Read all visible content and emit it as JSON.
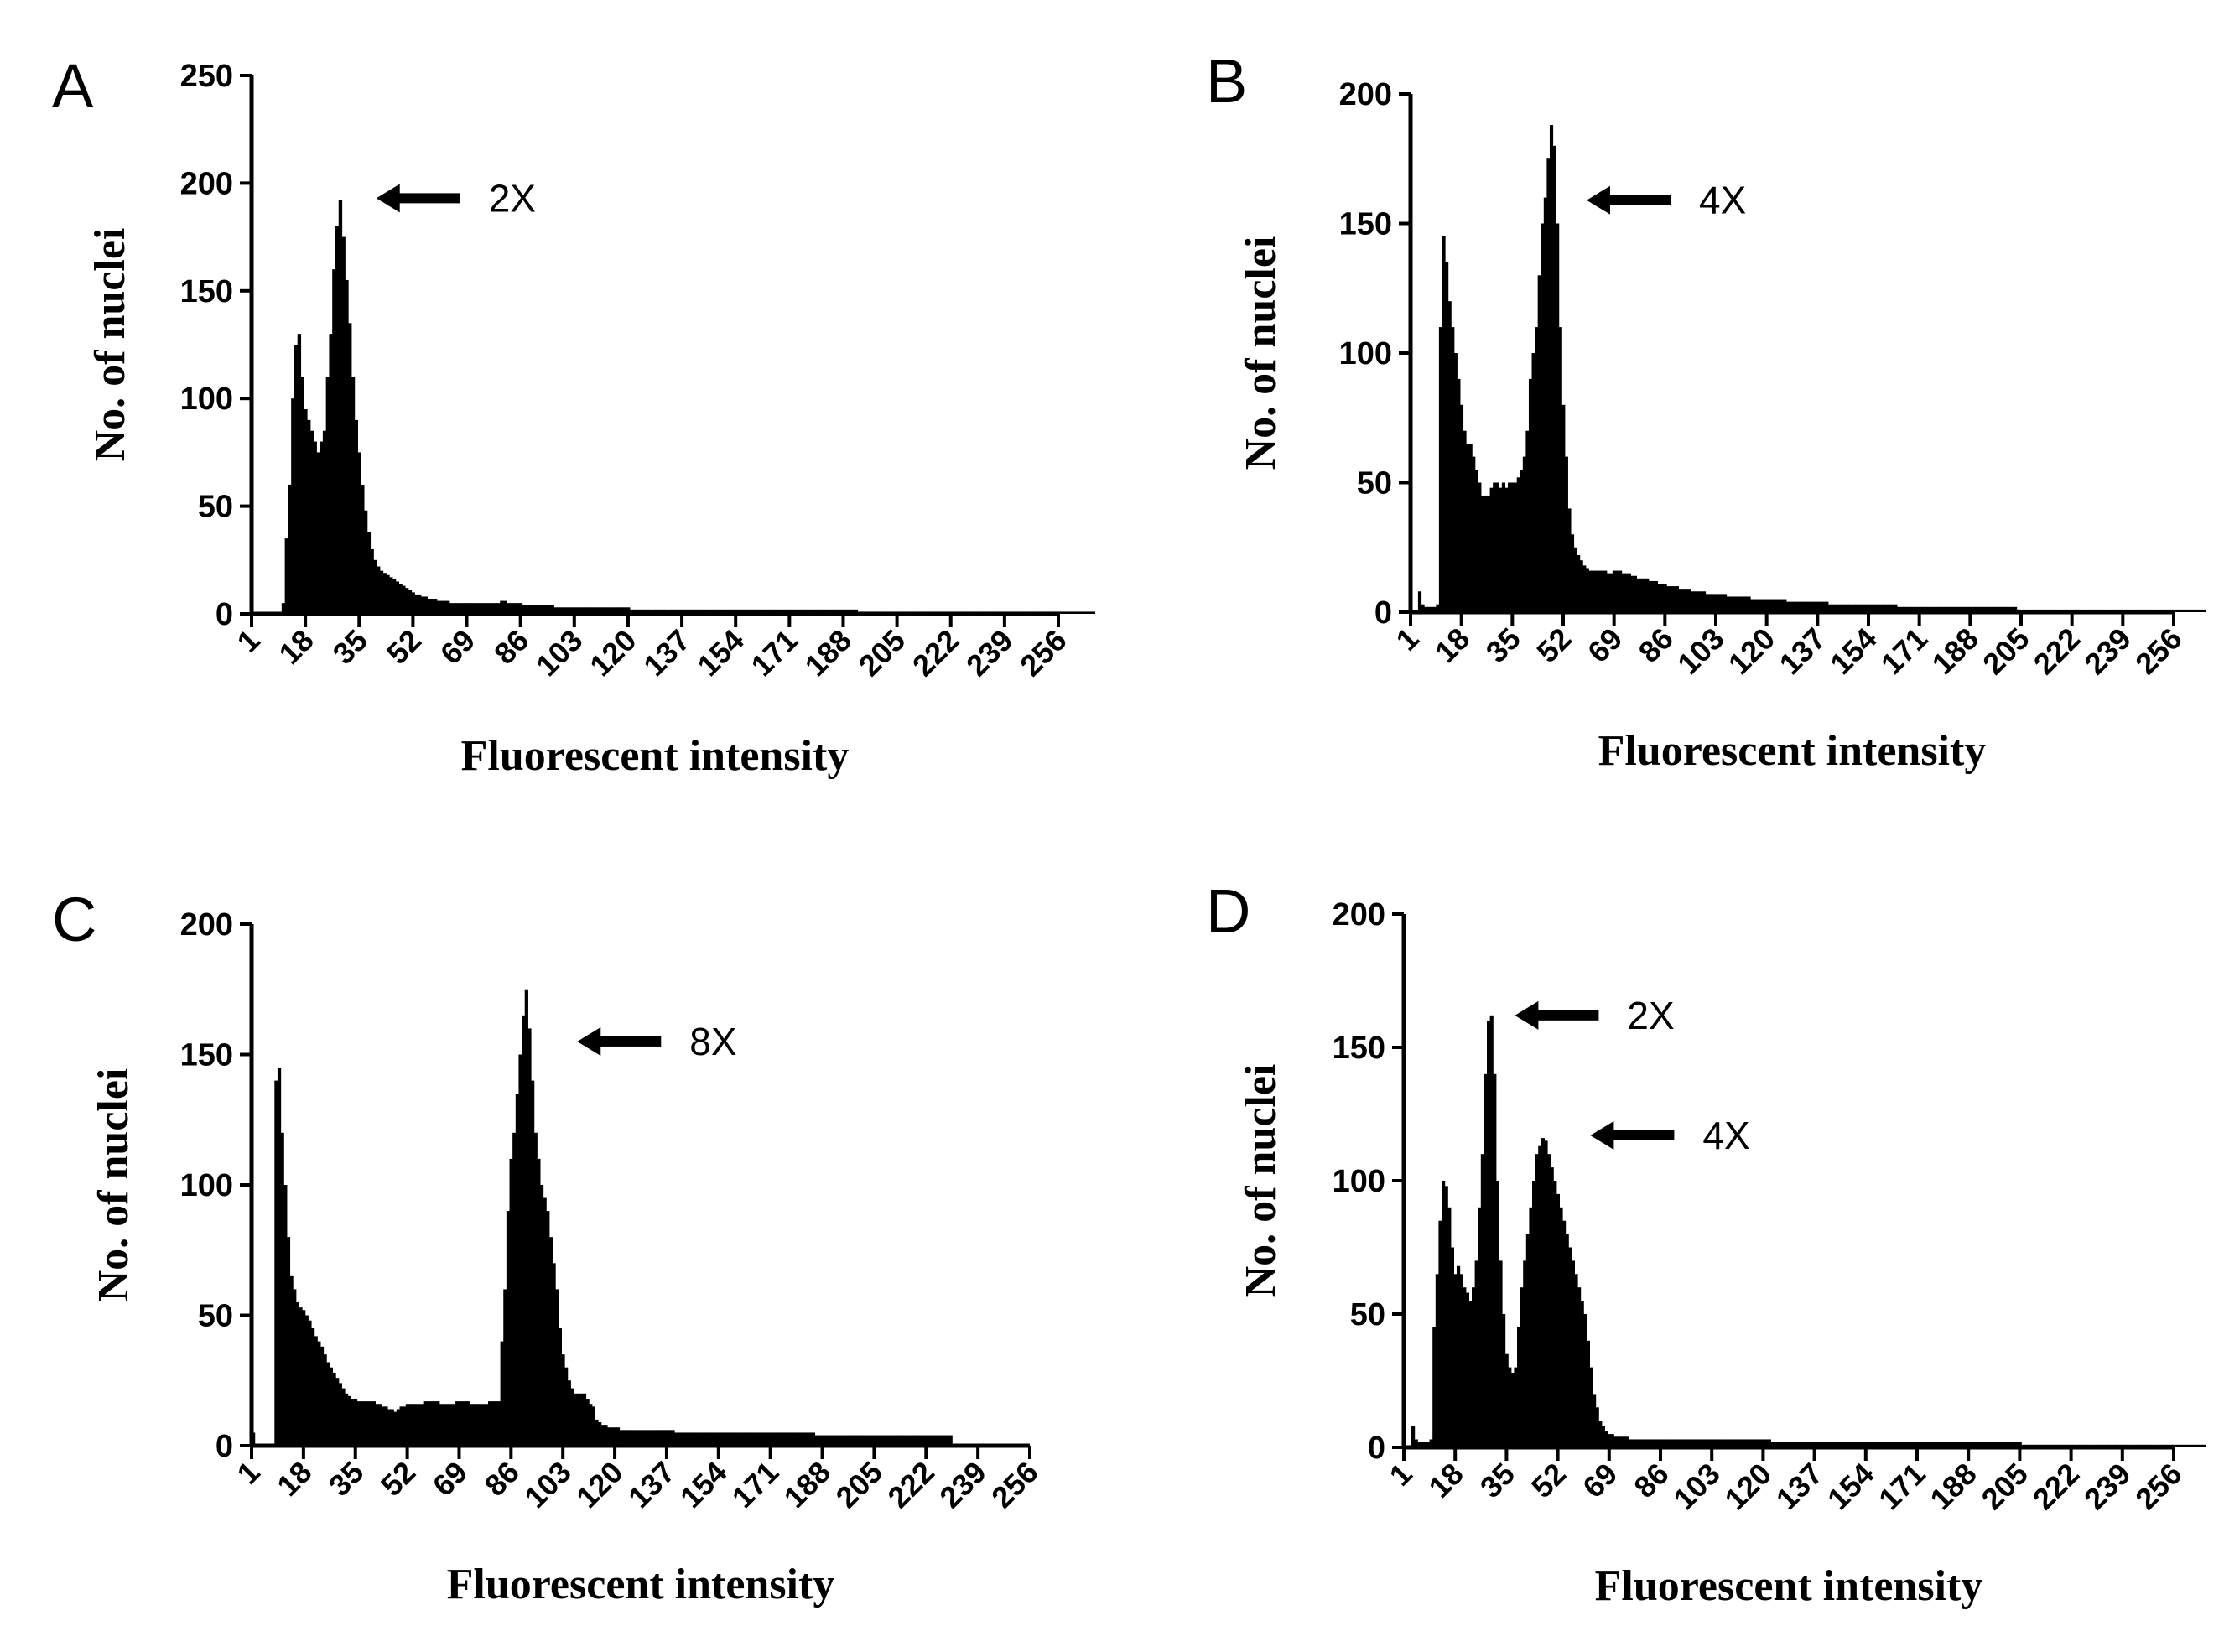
{
  "chart_data": [
    {
      "panel": "A",
      "type": "bar",
      "title": "",
      "xlabel": "Fluorescent intensity",
      "ylabel": "No. of nuclei",
      "xlim": [
        1,
        256
      ],
      "ylim": [
        0,
        250
      ],
      "x_ticks": [
        "1",
        "18",
        "35",
        "52",
        "69",
        "86",
        "103",
        "120",
        "137",
        "154",
        "171",
        "188",
        "205",
        "222",
        "239",
        "256"
      ],
      "y_ticks": [
        "0",
        "50",
        "100",
        "150",
        "200",
        "250"
      ],
      "annotations": [
        {
          "text": "2X",
          "x": 33,
          "y": 193
        }
      ],
      "series": [
        {
          "name": "nuclei",
          "x_start": 1,
          "values": [
            0,
            0,
            0,
            0,
            0,
            0,
            0,
            0,
            0,
            0,
            5,
            35,
            60,
            100,
            125,
            130,
            110,
            95,
            90,
            85,
            80,
            75,
            80,
            85,
            110,
            130,
            160,
            180,
            192,
            175,
            155,
            135,
            110,
            90,
            75,
            60,
            48,
            38,
            30,
            25,
            22,
            20,
            19,
            18,
            17,
            16,
            15,
            14,
            13,
            12,
            11,
            10,
            9,
            9,
            8,
            8,
            7,
            7,
            7,
            6,
            6,
            6,
            6,
            5,
            5,
            5,
            5,
            5,
            5,
            5,
            5,
            5,
            5,
            5,
            5,
            5,
            5,
            5,
            5,
            6,
            6,
            5,
            5,
            5,
            5,
            5,
            4,
            4,
            4,
            4,
            4,
            4,
            4,
            4,
            4,
            4,
            3,
            3,
            3,
            3,
            3,
            3,
            3,
            3,
            3,
            3,
            3,
            3,
            3,
            3,
            3,
            3,
            3,
            3,
            3,
            3,
            3,
            3,
            3,
            3,
            2,
            2,
            2,
            2,
            2,
            2,
            2,
            2,
            2,
            2,
            2,
            2,
            2,
            2,
            2,
            2,
            2,
            2,
            2,
            2,
            2,
            2,
            2,
            2,
            2,
            2,
            2,
            2,
            2,
            2,
            2,
            2,
            2,
            2,
            2,
            2,
            2,
            2,
            2,
            2,
            2,
            2,
            2,
            2,
            2,
            2,
            2,
            2,
            2,
            2,
            2,
            2,
            2,
            2,
            2,
            2,
            2,
            2,
            2,
            2,
            2,
            2,
            2,
            2,
            2,
            2,
            2,
            2,
            2,
            2,
            2,
            2,
            1,
            1,
            1,
            1,
            1,
            1,
            1,
            1,
            1,
            1,
            1,
            1,
            1,
            1,
            1,
            1,
            1,
            1,
            1,
            1,
            1,
            1,
            1,
            1,
            1,
            1,
            1,
            1,
            1,
            1,
            1,
            1,
            1,
            1,
            1,
            1,
            1,
            1,
            1,
            1,
            1,
            1,
            1,
            1,
            1,
            1,
            1,
            1,
            1,
            1,
            1,
            1,
            1,
            1,
            1,
            1,
            1,
            1,
            1,
            1,
            1,
            1,
            1,
            1,
            1,
            1,
            1,
            1,
            1,
            1,
            1,
            1,
            1,
            1,
            1,
            0
          ]
        }
      ]
    },
    {
      "panel": "B",
      "type": "bar",
      "title": "",
      "xlabel": "Fluorescent intensity",
      "ylabel": "No. of nuclei",
      "xlim": [
        1,
        256
      ],
      "ylim": [
        0,
        200
      ],
      "x_ticks": [
        "1",
        "18",
        "35",
        "52",
        "69",
        "86",
        "103",
        "120",
        "137",
        "154",
        "171",
        "188",
        "205",
        "222",
        "239",
        "256"
      ],
      "y_ticks": [
        "0",
        "50",
        "100",
        "150",
        "200"
      ],
      "annotations": [
        {
          "text": "4X",
          "x": 52,
          "y": 159
        }
      ],
      "series": [
        {
          "name": "nuclei",
          "x_start": 1,
          "values": [
            0,
            0,
            0,
            8,
            3,
            2,
            2,
            2,
            2,
            3,
            110,
            145,
            135,
            120,
            110,
            100,
            90,
            80,
            70,
            65,
            65,
            60,
            55,
            50,
            45,
            45,
            45,
            48,
            50,
            50,
            48,
            50,
            48,
            50,
            50,
            50,
            52,
            55,
            60,
            70,
            90,
            100,
            110,
            130,
            150,
            160,
            175,
            188,
            180,
            150,
            110,
            80,
            60,
            40,
            30,
            25,
            22,
            20,
            18,
            17,
            16,
            16,
            16,
            16,
            16,
            16,
            15,
            15,
            16,
            16,
            16,
            15,
            15,
            15,
            14,
            14,
            13,
            13,
            13,
            13,
            12,
            12,
            12,
            11,
            11,
            11,
            10,
            10,
            10,
            10,
            9,
            9,
            9,
            9,
            8,
            8,
            8,
            8,
            8,
            7,
            7,
            7,
            7,
            7,
            7,
            7,
            6,
            6,
            6,
            6,
            6,
            6,
            6,
            6,
            5,
            5,
            5,
            5,
            5,
            5,
            5,
            5,
            5,
            5,
            5,
            5,
            4,
            4,
            4,
            4,
            4,
            4,
            4,
            4,
            4,
            4,
            4,
            4,
            4,
            4,
            3,
            3,
            3,
            3,
            3,
            3,
            3,
            3,
            3,
            3,
            3,
            3,
            3,
            3,
            3,
            3,
            3,
            3,
            3,
            3,
            3,
            3,
            3,
            2,
            2,
            2,
            2,
            2,
            2,
            2,
            2,
            2,
            2,
            2,
            2,
            2,
            2,
            2,
            2,
            2,
            2,
            2,
            2,
            2,
            2,
            2,
            2,
            2,
            2,
            2,
            2,
            2,
            2,
            2,
            2,
            2,
            2,
            2,
            2,
            2,
            2,
            2,
            2,
            1,
            1,
            1,
            1,
            1,
            1,
            1,
            1,
            1,
            1,
            1,
            1,
            1,
            1,
            1,
            1,
            1,
            1,
            1,
            1,
            1,
            1,
            1,
            1,
            1,
            1,
            1,
            1,
            1,
            1,
            1,
            1,
            1,
            1,
            1,
            1,
            1,
            1,
            1,
            1,
            1,
            1,
            1,
            1,
            1,
            1,
            1,
            1,
            1,
            1,
            1,
            1,
            1,
            1,
            1,
            1,
            1,
            1,
            1,
            1,
            1,
            1,
            1,
            0,
            0,
            0,
            0
          ]
        }
      ]
    },
    {
      "panel": "C",
      "type": "bar",
      "title": "",
      "xlabel": "Fluorescent intensity",
      "ylabel": "No. of nuclei",
      "xlim": [
        1,
        256
      ],
      "ylim": [
        0,
        200
      ],
      "x_ticks": [
        "1",
        "18",
        "35",
        "52",
        "69",
        "86",
        "103",
        "120",
        "137",
        "154",
        "171",
        "188",
        "205",
        "222",
        "239",
        "256"
      ],
      "y_ticks": [
        "0",
        "50",
        "100",
        "150",
        "200"
      ],
      "annotations": [
        {
          "text": "8X",
          "x": 100,
          "y": 155
        }
      ],
      "series": [
        {
          "name": "nuclei",
          "x_start": 1,
          "values": [
            5,
            0,
            0,
            0,
            0,
            0,
            0,
            0,
            140,
            145,
            120,
            100,
            80,
            65,
            60,
            55,
            53,
            52,
            50,
            48,
            45,
            42,
            40,
            38,
            35,
            32,
            30,
            28,
            26,
            24,
            22,
            20,
            19,
            18,
            18,
            17,
            17,
            17,
            17,
            17,
            17,
            16,
            16,
            15,
            15,
            14,
            14,
            13,
            14,
            15,
            15,
            16,
            16,
            16,
            16,
            16,
            16,
            17,
            17,
            17,
            17,
            17,
            16,
            16,
            16,
            16,
            16,
            17,
            17,
            17,
            17,
            17,
            16,
            16,
            16,
            16,
            16,
            16,
            17,
            17,
            17,
            17,
            40,
            60,
            90,
            110,
            120,
            135,
            150,
            165,
            175,
            160,
            140,
            120,
            110,
            100,
            95,
            90,
            80,
            70,
            60,
            45,
            35,
            30,
            25,
            22,
            20,
            20,
            20,
            20,
            18,
            16,
            15,
            10,
            9,
            8,
            8,
            7,
            7,
            7,
            7,
            6,
            6,
            6,
            6,
            6,
            6,
            6,
            6,
            6,
            6,
            6,
            6,
            6,
            6,
            6,
            6,
            6,
            6,
            5,
            5,
            5,
            5,
            5,
            5,
            5,
            5,
            5,
            5,
            5,
            5,
            5,
            5,
            5,
            5,
            5,
            5,
            5,
            5,
            5,
            5,
            5,
            5,
            5,
            5,
            5,
            5,
            5,
            5,
            5,
            5,
            5,
            5,
            5,
            5,
            5,
            5,
            5,
            5,
            5,
            5,
            5,
            5,
            5,
            5,
            4,
            4,
            4,
            4,
            4,
            4,
            4,
            4,
            4,
            4,
            4,
            4,
            4,
            4,
            4,
            4,
            4,
            4,
            4,
            4,
            4,
            4,
            4,
            4,
            4,
            4,
            4,
            4,
            4,
            4,
            4,
            4,
            4,
            4,
            4,
            4,
            4,
            4,
            4,
            4,
            4,
            4,
            4,
            4,
            4,
            0,
            0,
            0,
            0,
            0,
            0,
            0,
            0,
            0,
            0,
            0,
            0,
            0,
            0,
            0,
            0
          ]
        }
      ]
    },
    {
      "panel": "D",
      "type": "bar",
      "title": "",
      "xlabel": "Fluorescent intensity",
      "ylabel": "No. of nuclei",
      "xlim": [
        1,
        256
      ],
      "ylim": [
        0,
        200
      ],
      "x_ticks": [
        "1",
        "18",
        "35",
        "52",
        "69",
        "86",
        "103",
        "120",
        "137",
        "154",
        "171",
        "188",
        "205",
        "222",
        "239",
        "256"
      ],
      "y_ticks": [
        "0",
        "50",
        "100",
        "150",
        "200"
      ],
      "annotations": [
        {
          "text": "2X",
          "x": 30,
          "y": 162
        },
        {
          "text": "4X",
          "x": 55,
          "y": 117
        }
      ],
      "series": [
        {
          "name": "nuclei",
          "x_start": 1,
          "values": [
            0,
            0,
            0,
            8,
            3,
            2,
            2,
            2,
            2,
            3,
            45,
            65,
            85,
            100,
            98,
            90,
            75,
            65,
            68,
            65,
            60,
            58,
            55,
            60,
            70,
            90,
            110,
            140,
            160,
            162,
            140,
            100,
            70,
            50,
            35,
            30,
            28,
            30,
            45,
            60,
            70,
            80,
            90,
            100,
            110,
            113,
            116,
            115,
            110,
            105,
            100,
            95,
            90,
            85,
            80,
            75,
            70,
            65,
            60,
            55,
            50,
            40,
            30,
            20,
            15,
            10,
            8,
            6,
            5,
            5,
            4,
            4,
            4,
            4,
            4,
            3,
            3,
            3,
            3,
            3,
            3,
            3,
            3,
            3,
            3,
            3,
            3,
            3,
            3,
            3,
            3,
            3,
            3,
            3,
            3,
            3,
            3,
            3,
            3,
            3,
            3,
            3,
            3,
            3,
            3,
            3,
            3,
            3,
            3,
            3,
            3,
            3,
            3,
            3,
            3,
            3,
            3,
            3,
            3,
            3,
            3,
            3,
            2,
            2,
            2,
            2,
            2,
            2,
            2,
            2,
            2,
            2,
            2,
            2,
            2,
            2,
            2,
            2,
            2,
            2,
            2,
            2,
            2,
            2,
            2,
            2,
            2,
            2,
            2,
            2,
            2,
            2,
            2,
            2,
            2,
            2,
            2,
            2,
            2,
            2,
            2,
            2,
            2,
            2,
            2,
            2,
            2,
            2,
            2,
            2,
            2,
            2,
            2,
            2,
            2,
            2,
            2,
            2,
            2,
            2,
            2,
            2,
            2,
            2,
            2,
            2,
            2,
            2,
            2,
            2,
            2,
            2,
            2,
            2,
            2,
            2,
            2,
            2,
            2,
            2,
            2,
            2,
            2,
            2,
            2,
            1,
            1,
            1,
            1,
            1,
            1,
            1,
            1,
            1,
            1,
            1,
            1,
            1,
            1,
            1,
            1,
            1,
            1,
            1,
            1,
            1,
            1,
            1,
            1,
            1,
            1,
            1,
            1,
            1,
            1,
            1,
            1,
            1,
            1,
            1,
            1,
            1,
            1,
            1,
            1,
            1,
            1,
            1,
            1,
            1,
            1,
            1,
            1,
            1,
            1,
            1,
            1,
            1,
            1,
            1,
            1,
            1,
            1,
            1,
            1,
            1,
            0,
            0,
            0,
            0
          ]
        }
      ]
    }
  ]
}
